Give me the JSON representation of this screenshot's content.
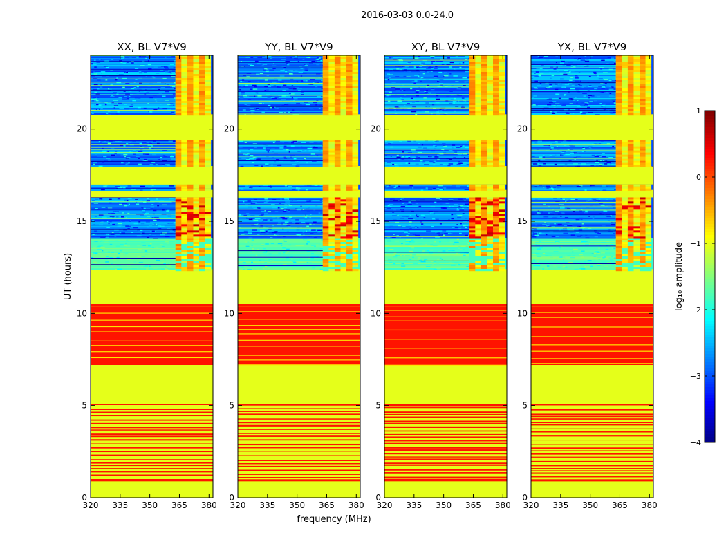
{
  "figure": {
    "suptitle": "2016-03-03 0.0-24.0"
  },
  "colorbar": {
    "label": "log₁₀ amplitude",
    "vmin": -4,
    "vmax": 1,
    "ticks": [
      {
        "value": 1,
        "label": "1"
      },
      {
        "value": 0,
        "label": "0"
      },
      {
        "value": -1,
        "label": "−1"
      },
      {
        "value": -2,
        "label": "−2"
      },
      {
        "value": -3,
        "label": "−3"
      },
      {
        "value": -4,
        "label": "−4"
      }
    ],
    "colormap": "jet"
  },
  "chart_data": {
    "type": "heatmap",
    "xlabel": "frequency (MHz)",
    "ylabel": "UT (hours)",
    "xlim": [
      320,
      382
    ],
    "ylim": [
      0,
      24
    ],
    "xticks": [
      {
        "value": 320,
        "label": "320"
      },
      {
        "value": 335,
        "label": "335"
      },
      {
        "value": 350,
        "label": "350"
      },
      {
        "value": 365,
        "label": "365"
      },
      {
        "value": 380,
        "label": "380"
      }
    ],
    "yticks": [
      {
        "value": 0,
        "label": "0"
      },
      {
        "value": 5,
        "label": "5"
      },
      {
        "value": 10,
        "label": "10"
      },
      {
        "value": 15,
        "label": "15"
      },
      {
        "value": 20,
        "label": "20"
      }
    ],
    "panels": [
      {
        "title": "XX, BL V7*V9",
        "pol": "XX"
      },
      {
        "title": "YY, BL V7*V9",
        "pol": "YY"
      },
      {
        "title": "XY, BL V7*V9",
        "pol": "XY"
      },
      {
        "title": "YX, BL V7*V9",
        "pol": "YX"
      }
    ],
    "flagged_value": -1.0,
    "time_segments": [
      {
        "ut_start": 0.0,
        "ut_end": 0.9,
        "kind": "flagged"
      },
      {
        "ut_start": 0.9,
        "ut_end": 5.1,
        "kind": "striped_orange"
      },
      {
        "ut_start": 5.1,
        "ut_end": 7.2,
        "kind": "flagged"
      },
      {
        "ut_start": 7.2,
        "ut_end": 10.5,
        "kind": "solid_orange"
      },
      {
        "ut_start": 10.5,
        "ut_end": 12.4,
        "kind": "flagged"
      },
      {
        "ut_start": 12.4,
        "ut_end": 14.1,
        "kind": "data_weak"
      },
      {
        "ut_start": 14.1,
        "ut_end": 16.3,
        "kind": "data"
      },
      {
        "ut_start": 16.3,
        "ut_end": 16.7,
        "kind": "flagged"
      },
      {
        "ut_start": 16.7,
        "ut_end": 17.0,
        "kind": "data"
      },
      {
        "ut_start": 17.0,
        "ut_end": 18.0,
        "kind": "flagged"
      },
      {
        "ut_start": 18.0,
        "ut_end": 19.4,
        "kind": "data"
      },
      {
        "ut_start": 19.4,
        "ut_end": 20.8,
        "kind": "flagged"
      },
      {
        "ut_start": 20.8,
        "ut_end": 24.0,
        "kind": "data"
      }
    ],
    "rfi_band_mhz": [
      363,
      381
    ]
  }
}
